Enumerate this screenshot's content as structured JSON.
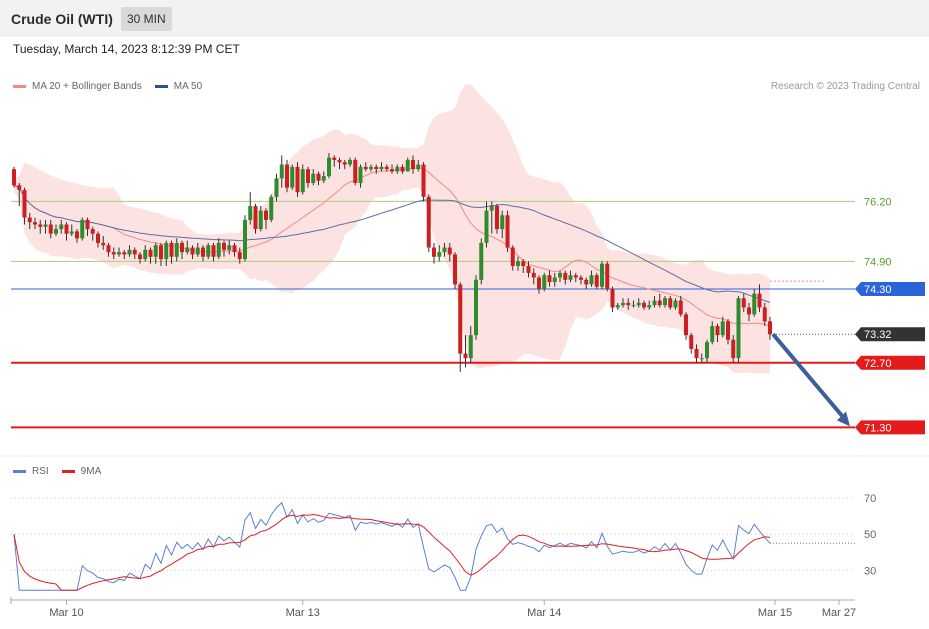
{
  "header": {
    "title": "Crude Oil (WTI)",
    "timeframe": "30 MIN"
  },
  "datetime": "Tuesday, March 14, 2023 8:12:39 PM CET",
  "legend_main": [
    {
      "label": "MA 20 + Bollinger Bands",
      "color": "#f08a8a"
    },
    {
      "label": "MA 50",
      "color": "#2f4f8f"
    }
  ],
  "legend_rsi": [
    {
      "label": "RSI",
      "color": "#5b7fd6"
    },
    {
      "label": "9MA",
      "color": "#e02020"
    }
  ],
  "credit": "Research © 2023 Trading Central",
  "chart_data": {
    "type": "candlestick",
    "ylim": [
      70.7,
      78.4
    ],
    "levels": [
      {
        "value": 76.2,
        "label": "76.20",
        "kind": "resistance-minor",
        "color": "#a8cf7a",
        "text_color": "#5a9a2a"
      },
      {
        "value": 74.9,
        "label": "74.90",
        "kind": "resistance-minor",
        "color": "#a8cf7a",
        "text_color": "#5a9a2a"
      },
      {
        "value": 74.3,
        "label": "74.30",
        "kind": "pivot",
        "color": "#2a64d8"
      },
      {
        "value": 73.32,
        "label": "73.32",
        "kind": "last-price",
        "color": "#333333"
      },
      {
        "value": 72.7,
        "label": "72.70",
        "kind": "support",
        "color": "#e41b1b"
      },
      {
        "value": 71.3,
        "label": "71.30",
        "kind": "support",
        "color": "#e41b1b"
      }
    ],
    "forecast_arrow": {
      "from_value": 73.32,
      "to_value": 71.3,
      "color": "#3a5f9a"
    },
    "x_ticks": [
      "Mar 10",
      "Mar 13",
      "Mar 14",
      "Mar 15",
      "Mar 27"
    ],
    "candles": [
      [
        76.9,
        76.55,
        76.95,
        76.5
      ],
      [
        76.55,
        76.45,
        76.6,
        76.1
      ],
      [
        76.45,
        75.85,
        76.5,
        75.7
      ],
      [
        75.85,
        75.75,
        75.95,
        75.6
      ],
      [
        75.75,
        75.7,
        75.85,
        75.6
      ],
      [
        75.7,
        75.65,
        75.8,
        75.5
      ],
      [
        75.65,
        75.7,
        75.8,
        75.5
      ],
      [
        75.7,
        75.5,
        75.8,
        75.4
      ],
      [
        75.5,
        75.6,
        75.7,
        75.45
      ],
      [
        75.6,
        75.7,
        75.8,
        75.5
      ],
      [
        75.7,
        75.5,
        75.75,
        75.35
      ],
      [
        75.5,
        75.55,
        75.7,
        75.45
      ],
      [
        75.55,
        75.4,
        75.6,
        75.3
      ],
      [
        75.4,
        75.8,
        75.85,
        75.35
      ],
      [
        75.8,
        75.6,
        75.85,
        75.45
      ],
      [
        75.6,
        75.5,
        75.65,
        75.35
      ],
      [
        75.5,
        75.3,
        75.55,
        75.2
      ],
      [
        75.3,
        75.25,
        75.45,
        75.15
      ],
      [
        75.25,
        75.1,
        75.3,
        75.0
      ],
      [
        75.1,
        75.05,
        75.2,
        74.95
      ],
      [
        75.05,
        75.1,
        75.2,
        75.0
      ],
      [
        75.1,
        75.05,
        75.15,
        74.95
      ],
      [
        75.05,
        75.15,
        75.25,
        75.0
      ],
      [
        75.15,
        75.05,
        75.2,
        74.95
      ],
      [
        75.05,
        74.95,
        75.1,
        74.85
      ],
      [
        74.95,
        75.15,
        75.25,
        74.9
      ],
      [
        75.15,
        75.0,
        75.2,
        74.85
      ],
      [
        75.0,
        75.25,
        75.3,
        74.85
      ],
      [
        75.25,
        74.95,
        75.3,
        74.8
      ],
      [
        74.95,
        75.3,
        75.35,
        74.8
      ],
      [
        75.3,
        75.0,
        75.35,
        74.85
      ],
      [
        75.0,
        75.3,
        75.4,
        74.9
      ],
      [
        75.3,
        75.1,
        75.35,
        74.95
      ],
      [
        75.1,
        75.2,
        75.35,
        75.05
      ],
      [
        75.2,
        75.05,
        75.25,
        74.95
      ],
      [
        75.05,
        75.2,
        75.3,
        75.0
      ],
      [
        75.2,
        75.0,
        75.25,
        74.9
      ],
      [
        75.0,
        75.25,
        75.3,
        74.95
      ],
      [
        75.25,
        75.0,
        75.3,
        74.9
      ],
      [
        75.0,
        75.3,
        75.4,
        74.95
      ],
      [
        75.3,
        75.15,
        75.35,
        75.0
      ],
      [
        75.15,
        75.25,
        75.35,
        75.05
      ],
      [
        75.25,
        75.1,
        75.3,
        75.0
      ],
      [
        75.1,
        74.95,
        75.2,
        74.85
      ],
      [
        74.95,
        75.8,
        75.9,
        74.9
      ],
      [
        75.8,
        76.1,
        76.4,
        75.7
      ],
      [
        76.1,
        75.6,
        76.15,
        75.5
      ],
      [
        75.6,
        76.0,
        76.1,
        75.55
      ],
      [
        76.0,
        75.8,
        76.05,
        75.6
      ],
      [
        75.8,
        76.3,
        76.35,
        75.75
      ],
      [
        76.3,
        76.7,
        76.8,
        76.2
      ],
      [
        76.7,
        77.0,
        77.2,
        76.5
      ],
      [
        77.0,
        76.5,
        77.1,
        76.4
      ],
      [
        76.5,
        76.95,
        77.0,
        76.45
      ],
      [
        76.95,
        76.4,
        77.05,
        76.3
      ],
      [
        76.4,
        76.9,
        77.0,
        76.35
      ],
      [
        76.9,
        76.6,
        76.95,
        76.5
      ],
      [
        76.6,
        76.8,
        76.9,
        76.55
      ],
      [
        76.8,
        76.65,
        76.85,
        76.55
      ],
      [
        76.65,
        76.75,
        76.85,
        76.6
      ],
      [
        76.75,
        77.15,
        77.25,
        76.7
      ],
      [
        77.15,
        77.1,
        77.2,
        76.95
      ],
      [
        77.1,
        77.05,
        77.15,
        76.9
      ],
      [
        77.05,
        77.0,
        77.1,
        76.9
      ],
      [
        77.0,
        77.1,
        77.15,
        76.95
      ],
      [
        77.1,
        76.6,
        77.15,
        76.55
      ],
      [
        76.6,
        76.95,
        77.0,
        76.5
      ],
      [
        76.95,
        76.9,
        77.05,
        76.85
      ],
      [
        76.9,
        76.95,
        77.0,
        76.85
      ],
      [
        76.95,
        76.9,
        77.0,
        76.8
      ],
      [
        76.9,
        76.95,
        77.05,
        76.85
      ],
      [
        76.95,
        76.9,
        77.0,
        76.85
      ],
      [
        76.9,
        76.85,
        77.0,
        76.8
      ],
      [
        76.85,
        76.95,
        77.0,
        76.8
      ],
      [
        76.95,
        76.85,
        77.0,
        76.8
      ],
      [
        76.85,
        77.1,
        77.15,
        76.85
      ],
      [
        77.1,
        76.9,
        77.2,
        76.8
      ],
      [
        76.9,
        77.0,
        77.1,
        76.85
      ],
      [
        77.0,
        76.3,
        77.05,
        76.2
      ],
      [
        76.3,
        75.2,
        76.35,
        75.1
      ],
      [
        75.2,
        75.0,
        75.3,
        74.85
      ],
      [
        75.0,
        75.1,
        75.25,
        74.9
      ],
      [
        75.1,
        75.2,
        75.3,
        75.0
      ],
      [
        75.2,
        75.05,
        75.3,
        74.9
      ],
      [
        75.05,
        74.4,
        75.1,
        74.3
      ],
      [
        74.4,
        72.9,
        74.45,
        72.5
      ],
      [
        72.9,
        72.8,
        73.3,
        72.6
      ],
      [
        72.8,
        73.3,
        73.5,
        72.7
      ],
      [
        73.3,
        74.5,
        74.6,
        73.2
      ],
      [
        74.5,
        75.3,
        75.4,
        74.4
      ],
      [
        75.3,
        76.0,
        76.2,
        75.2
      ],
      [
        76.0,
        76.1,
        76.2,
        75.5
      ],
      [
        76.1,
        75.6,
        76.15,
        75.5
      ],
      [
        75.6,
        75.9,
        76.0,
        75.4
      ],
      [
        75.9,
        75.2,
        76.0,
        75.1
      ],
      [
        75.2,
        74.8,
        75.25,
        74.7
      ],
      [
        74.8,
        74.9,
        75.0,
        74.7
      ],
      [
        74.9,
        74.8,
        74.95,
        74.65
      ],
      [
        74.8,
        74.65,
        74.9,
        74.55
      ],
      [
        74.65,
        74.55,
        74.75,
        74.4
      ],
      [
        74.55,
        74.3,
        74.6,
        74.2
      ],
      [
        74.3,
        74.6,
        74.65,
        74.25
      ],
      [
        74.6,
        74.45,
        74.7,
        74.35
      ],
      [
        74.45,
        74.55,
        74.65,
        74.35
      ],
      [
        74.55,
        74.65,
        74.7,
        74.45
      ],
      [
        74.65,
        74.5,
        74.7,
        74.4
      ],
      [
        74.5,
        74.6,
        74.7,
        74.45
      ],
      [
        74.6,
        74.55,
        74.65,
        74.45
      ],
      [
        74.55,
        74.5,
        74.6,
        74.4
      ],
      [
        74.5,
        74.4,
        74.55,
        74.3
      ],
      [
        74.4,
        74.6,
        74.7,
        74.35
      ],
      [
        74.6,
        74.35,
        74.65,
        74.3
      ],
      [
        74.35,
        74.85,
        74.9,
        74.3
      ],
      [
        74.85,
        74.3,
        74.9,
        74.25
      ],
      [
        74.3,
        73.9,
        74.35,
        73.8
      ],
      [
        73.9,
        73.95,
        74.0,
        73.85
      ],
      [
        73.95,
        74.0,
        74.1,
        73.9
      ],
      [
        74.0,
        73.95,
        74.1,
        73.85
      ],
      [
        73.95,
        73.95,
        74.05,
        73.9
      ],
      [
        73.95,
        74.0,
        74.1,
        73.9
      ],
      [
        74.0,
        73.9,
        74.05,
        73.85
      ],
      [
        73.9,
        73.95,
        74.05,
        73.85
      ],
      [
        73.95,
        74.05,
        74.15,
        73.9
      ],
      [
        74.05,
        73.95,
        74.2,
        73.9
      ],
      [
        73.95,
        74.1,
        74.15,
        73.9
      ],
      [
        74.1,
        73.9,
        74.15,
        73.85
      ],
      [
        73.9,
        74.05,
        74.1,
        73.85
      ],
      [
        74.05,
        73.75,
        74.15,
        73.7
      ],
      [
        73.75,
        73.3,
        73.8,
        73.2
      ],
      [
        73.3,
        73.0,
        73.35,
        72.9
      ],
      [
        73.0,
        72.8,
        73.1,
        72.7
      ],
      [
        72.8,
        72.8,
        72.9,
        72.7
      ],
      [
        72.8,
        73.15,
        73.2,
        72.7
      ],
      [
        73.15,
        73.5,
        73.6,
        73.1
      ],
      [
        73.5,
        73.3,
        73.55,
        73.15
      ],
      [
        73.3,
        73.6,
        73.7,
        73.25
      ],
      [
        73.6,
        73.2,
        73.65,
        73.1
      ],
      [
        73.2,
        72.8,
        73.3,
        72.7
      ],
      [
        72.8,
        74.1,
        74.15,
        72.7
      ],
      [
        74.1,
        73.9,
        74.2,
        73.8
      ],
      [
        73.9,
        73.75,
        74.0,
        73.6
      ],
      [
        73.75,
        74.2,
        74.3,
        73.7
      ],
      [
        74.2,
        73.9,
        74.4,
        73.8
      ],
      [
        73.9,
        73.6,
        74.0,
        73.5
      ],
      [
        73.6,
        73.32,
        73.7,
        73.2
      ]
    ],
    "rsi": {
      "labels": [
        "70",
        "50",
        "30"
      ],
      "guides": [
        70,
        50,
        30
      ],
      "ylim": [
        18,
        80
      ]
    }
  }
}
